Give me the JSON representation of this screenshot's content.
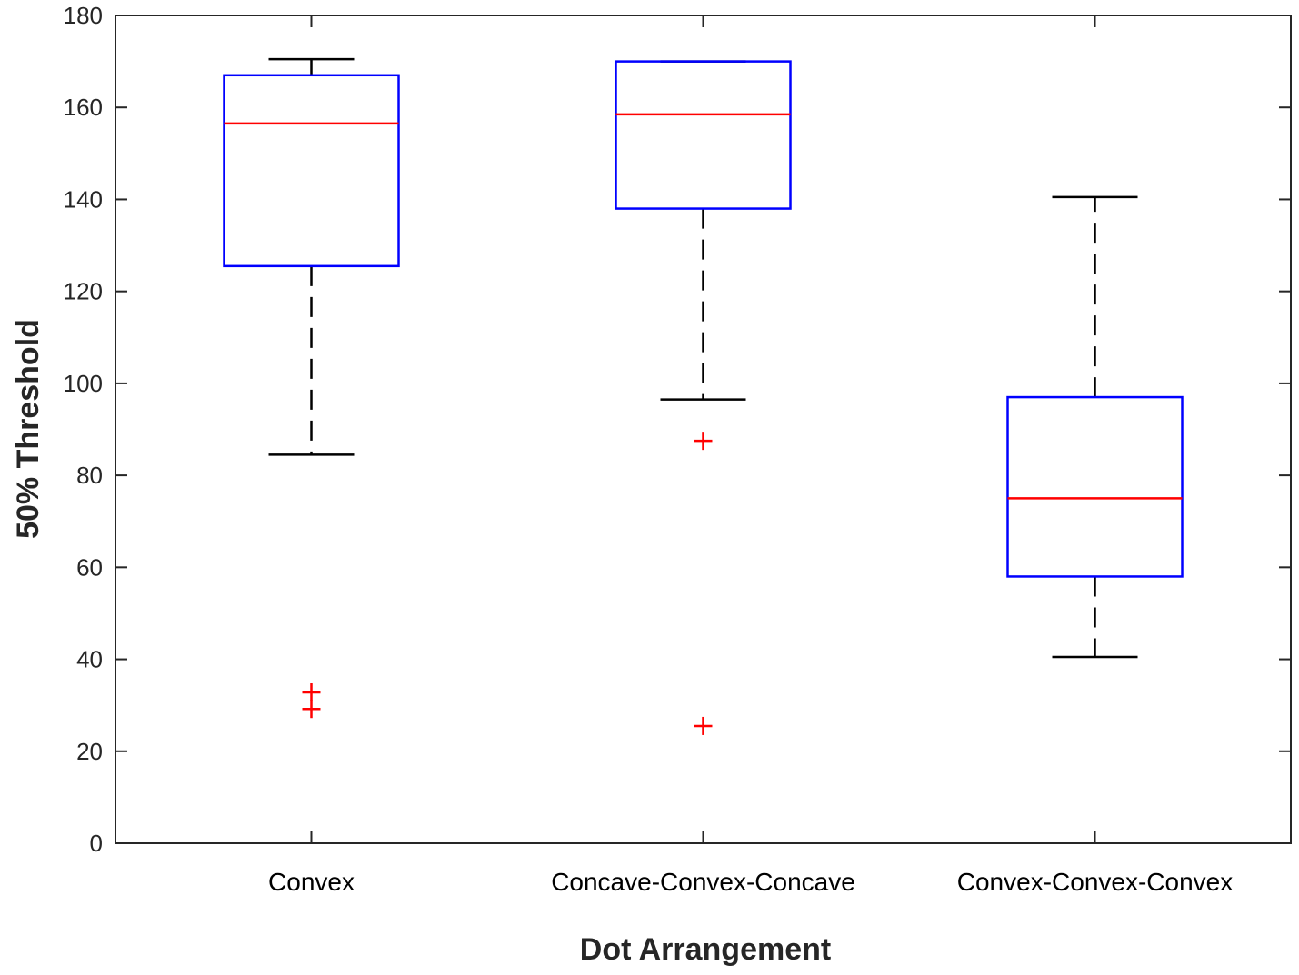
{
  "chart_data": {
    "type": "box",
    "title": "",
    "xlabel": "Dot Arrangement",
    "ylabel": "50% Threshold",
    "ylim": [
      0,
      180
    ],
    "yticks": [
      0,
      20,
      40,
      60,
      80,
      100,
      120,
      140,
      160,
      180
    ],
    "grid": false,
    "categories": [
      "Convex",
      "Concave-Convex-Concave",
      "Convex-Convex-Convex"
    ],
    "boxes": [
      {
        "category": "Convex",
        "whisker_low": 84.5,
        "q1": 125.5,
        "median": 156.5,
        "q3": 167,
        "whisker_high": 170.5,
        "outliers": [
          32.8,
          29.2
        ]
      },
      {
        "category": "Concave-Convex-Concave",
        "whisker_low": 96.5,
        "q1": 138,
        "median": 158.5,
        "q3": 170,
        "whisker_high": 170,
        "outliers": [
          87.5,
          25.5
        ]
      },
      {
        "category": "Convex-Convex-Convex",
        "whisker_low": 40.5,
        "q1": 58,
        "median": 75,
        "q3": 97,
        "whisker_high": 140.5,
        "outliers": []
      }
    ],
    "colors": {
      "box": "#0000ff",
      "median": "#ff0000",
      "whisker": "#000000",
      "outlier": "#ff0000",
      "axis": "#262626"
    }
  }
}
